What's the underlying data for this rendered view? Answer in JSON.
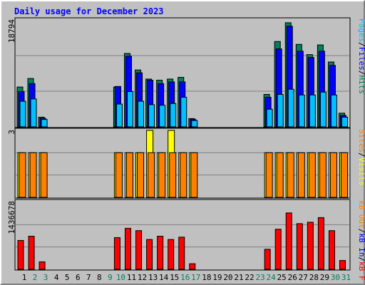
{
  "chart_data": [
    {
      "type": "bar",
      "title": "Daily usage for December 2023",
      "ymax_label": "18794",
      "ylim": [
        0,
        18794
      ],
      "grid": true,
      "categories": [
        "1",
        "2",
        "3",
        "4",
        "5",
        "6",
        "7",
        "8",
        "9",
        "10",
        "11",
        "12",
        "13",
        "14",
        "15",
        "16",
        "17",
        "18",
        "19",
        "20",
        "21",
        "22",
        "23",
        "24",
        "25",
        "26",
        "27",
        "28",
        "29",
        "30",
        "31"
      ],
      "weekend_days": [
        "2",
        "3",
        "9",
        "10",
        "16",
        "17",
        "23",
        "24",
        "30",
        "31"
      ],
      "legend_right": [
        "Pages",
        "Files",
        "Hits"
      ],
      "series": [
        {
          "name": "Hits",
          "color": "#00805c",
          "values": [
            7000,
            8500,
            1700,
            0,
            0,
            0,
            0,
            0,
            0,
            7000,
            12900,
            10000,
            8400,
            8200,
            8400,
            8700,
            1450,
            0,
            0,
            0,
            0,
            0,
            0,
            5700,
            15000,
            18300,
            14500,
            12700,
            14400,
            11400,
            2400
          ]
        },
        {
          "name": "Files",
          "color": "#0000ff",
          "values": [
            6200,
            7600,
            1500,
            0,
            0,
            0,
            0,
            0,
            0,
            7100,
            12400,
            9500,
            8200,
            7600,
            7900,
            7900,
            1300,
            0,
            0,
            0,
            0,
            0,
            0,
            5200,
            13700,
            17700,
            13300,
            12200,
            13300,
            10800,
            2000
          ]
        },
        {
          "name": "Pages",
          "color": "#00c0ff",
          "values": [
            4500,
            4900,
            1300,
            0,
            0,
            0,
            0,
            0,
            0,
            4000,
            6200,
            4500,
            3900,
            3800,
            4100,
            5200,
            1100,
            0,
            0,
            0,
            0,
            0,
            0,
            3100,
            5700,
            6600,
            5600,
            5600,
            6100,
            5600,
            1700
          ]
        }
      ]
    },
    {
      "type": "bar",
      "ymax_label": "3",
      "ylim": [
        0,
        3
      ],
      "grid": true,
      "legend_right": [
        "Visits",
        "Sites"
      ],
      "series": [
        {
          "name": "Visits",
          "color": "#ffff00",
          "values": [
            2,
            2,
            2,
            0,
            0,
            0,
            0,
            0,
            0,
            2,
            2,
            2,
            3,
            2,
            3,
            2,
            2,
            0,
            0,
            0,
            0,
            0,
            0,
            2,
            2,
            2,
            2,
            2,
            2,
            2,
            2
          ]
        },
        {
          "name": "Sites",
          "color": "#ff8000",
          "values": [
            2,
            2,
            2,
            0,
            0,
            0,
            0,
            0,
            0,
            2,
            2,
            2,
            2,
            2,
            2,
            2,
            2,
            0,
            0,
            0,
            0,
            0,
            0,
            2,
            2,
            2,
            2,
            2,
            2,
            2,
            2
          ]
        }
      ]
    },
    {
      "type": "bar",
      "ymax_label": "1436678",
      "ylim": [
        0,
        1436678
      ],
      "grid": true,
      "legend_right": [
        "kB F",
        "kB In",
        "kB Out"
      ],
      "series": [
        {
          "name": "kB F",
          "color": "#ff0000",
          "values": [
            620000,
            710000,
            160000,
            0,
            0,
            0,
            0,
            0,
            0,
            680000,
            880000,
            830000,
            640000,
            710000,
            640000,
            690000,
            120000,
            0,
            0,
            0,
            0,
            0,
            0,
            430000,
            860000,
            1210000,
            980000,
            1010000,
            1110000,
            830000,
            190000
          ]
        }
      ]
    }
  ],
  "colors": {
    "background": "#c0c0c0",
    "title": "#0000ff",
    "weekday_label": "#000000",
    "weekend_label": "#00805c",
    "separator": "#000000"
  }
}
